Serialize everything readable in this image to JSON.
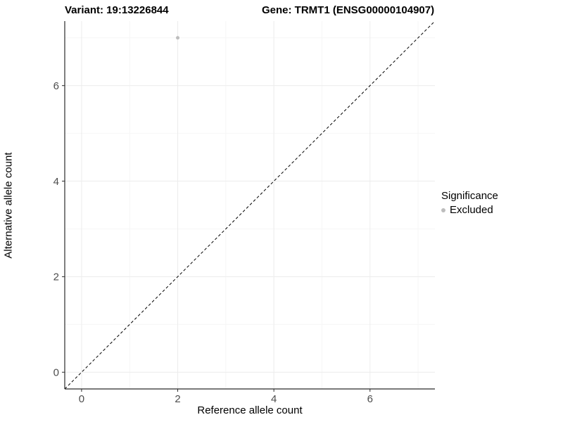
{
  "title": {
    "left": "Variant: 19:13226844",
    "right": "Gene: TRMT1 (ENSG00000104907)"
  },
  "legend": {
    "title": "Significance",
    "items": [
      {
        "label": "Excluded",
        "color": "#bdbdbd"
      }
    ]
  },
  "colors": {
    "point": "#bdbdbd",
    "grid_major": "#ececec",
    "grid_minor": "#f6f6f6",
    "axis_line": "#2b2b2b",
    "tick_label": "#4d4d4d",
    "reference_line": "#000000"
  },
  "chart_data": {
    "type": "scatter",
    "title": "Variant: 19:13226844    Gene: TRMT1 (ENSG00000104907)",
    "xlabel": "Reference allele count",
    "ylabel": "Alternative allele count",
    "xlim": [
      -0.35,
      7.35
    ],
    "ylim": [
      -0.35,
      7.35
    ],
    "xticks_major": [
      0,
      2,
      4,
      6
    ],
    "yticks_major": [
      0,
      2,
      4,
      6
    ],
    "xticks_minor": [
      1,
      3,
      5,
      7
    ],
    "yticks_minor": [
      1,
      3,
      5,
      7
    ],
    "grid": true,
    "legend_position": "right",
    "series": [
      {
        "name": "Excluded",
        "color": "#bdbdbd",
        "points": [
          {
            "x": 2,
            "y": 7
          }
        ]
      }
    ],
    "reference_line": {
      "style": "dashed",
      "from": [
        -0.35,
        -0.35
      ],
      "to": [
        7.35,
        7.35
      ],
      "meaning": "y = x"
    }
  }
}
